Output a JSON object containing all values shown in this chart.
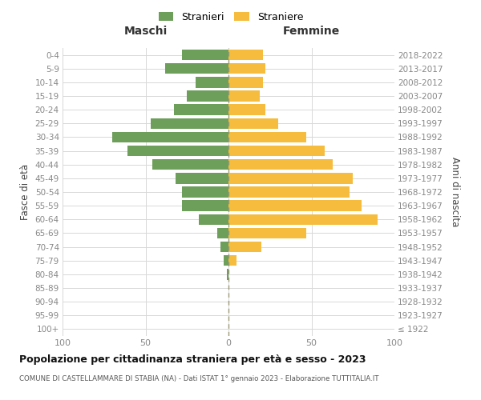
{
  "age_groups": [
    "100+",
    "95-99",
    "90-94",
    "85-89",
    "80-84",
    "75-79",
    "70-74",
    "65-69",
    "60-64",
    "55-59",
    "50-54",
    "45-49",
    "40-44",
    "35-39",
    "30-34",
    "25-29",
    "20-24",
    "15-19",
    "10-14",
    "5-9",
    "0-4"
  ],
  "birth_years": [
    "≤ 1922",
    "1923-1927",
    "1928-1932",
    "1933-1937",
    "1938-1942",
    "1943-1947",
    "1948-1952",
    "1953-1957",
    "1958-1962",
    "1963-1967",
    "1968-1972",
    "1973-1977",
    "1978-1982",
    "1983-1987",
    "1988-1992",
    "1993-1997",
    "1998-2002",
    "2003-2007",
    "2008-2012",
    "2013-2017",
    "2018-2022"
  ],
  "maschi": [
    0,
    0,
    0,
    0,
    1,
    3,
    5,
    7,
    18,
    28,
    28,
    32,
    46,
    61,
    70,
    47,
    33,
    25,
    20,
    38,
    28
  ],
  "femmine": [
    0,
    0,
    0,
    0,
    0,
    5,
    20,
    47,
    90,
    80,
    73,
    75,
    63,
    58,
    47,
    30,
    22,
    19,
    21,
    22,
    21
  ],
  "color_maschi": "#6d9e5a",
  "color_femmine": "#f5bc3d",
  "title": "Popolazione per cittadinanza straniera per età e sesso - 2023",
  "subtitle": "COMUNE DI CASTELLAMMARE DI STABIA (NA) - Dati ISTAT 1° gennaio 2023 - Elaborazione TUTTITALIA.IT",
  "ylabel_left": "Fasce di età",
  "ylabel_right": "Anni di nascita",
  "xlabel_left": "Maschi",
  "xlabel_right": "Femmine",
  "xlim": 100,
  "legend_stranieri": "Stranieri",
  "legend_straniere": "Straniere",
  "background_color": "#ffffff",
  "grid_color": "#d8d8d8"
}
